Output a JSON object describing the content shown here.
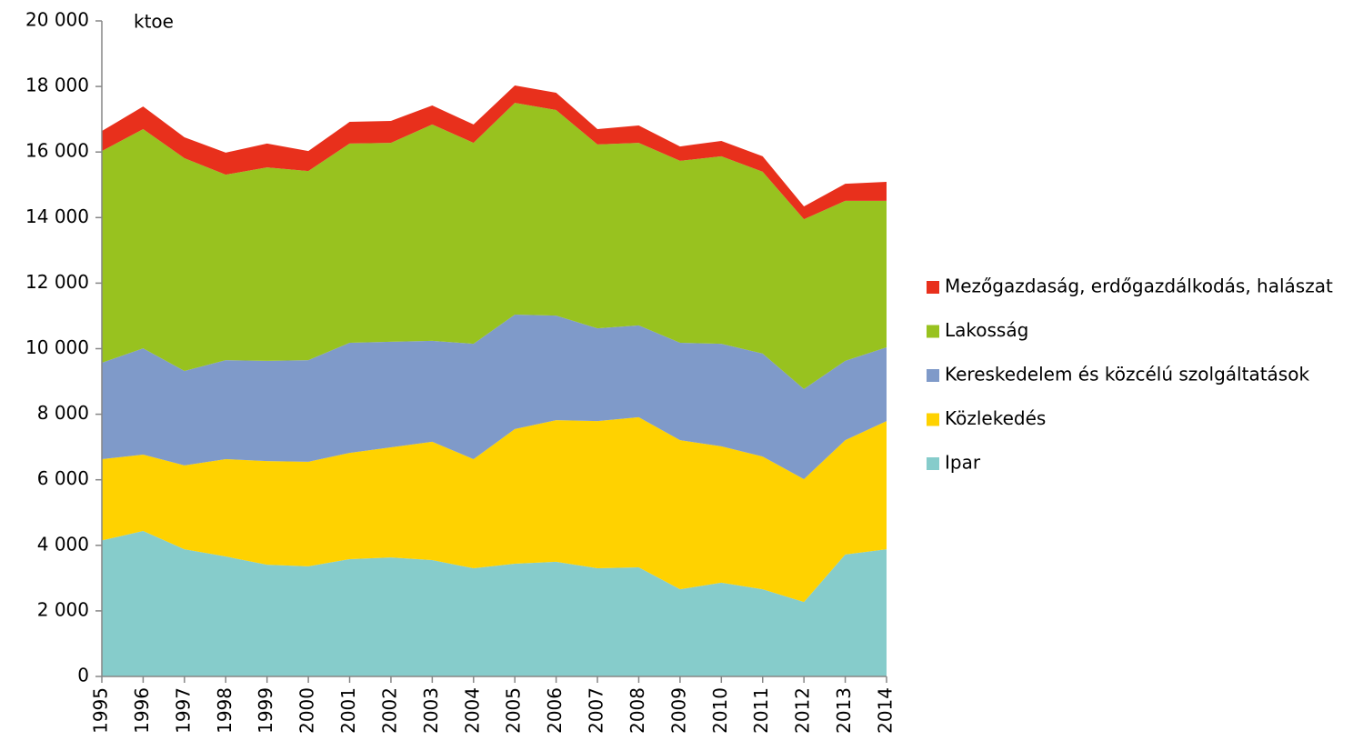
{
  "chart_data": {
    "type": "stacked-area",
    "y_label": "ktoe",
    "categories": [
      "1995",
      "1996",
      "1997",
      "1998",
      "1999",
      "2000",
      "2001",
      "2002",
      "2003",
      "2004",
      "2005",
      "2006",
      "2007",
      "2008",
      "2009",
      "2010",
      "2011",
      "2012",
      "2013",
      "2014"
    ],
    "series": [
      {
        "name": "Ipar",
        "color": "#86cccb",
        "values": [
          4150,
          4440,
          3880,
          3660,
          3410,
          3360,
          3580,
          3630,
          3550,
          3300,
          3440,
          3500,
          3300,
          3330,
          2660,
          2860,
          2660,
          2270,
          3720,
          3880
        ]
      },
      {
        "name": "Közlekedés",
        "color": "#ffd200",
        "values": [
          2480,
          2330,
          2560,
          2970,
          3160,
          3190,
          3240,
          3360,
          3610,
          3330,
          4110,
          4320,
          4490,
          4580,
          4550,
          4160,
          4050,
          3750,
          3490,
          3910
        ]
      },
      {
        "name": "Kereskedelem és közcélú szolgáltatások",
        "color": "#7f9ac9",
        "values": [
          2940,
          3240,
          2880,
          3020,
          3060,
          3100,
          3360,
          3220,
          3080,
          3520,
          3490,
          3190,
          2830,
          2800,
          2970,
          3130,
          3140,
          2750,
          2420,
          2250
        ]
      },
      {
        "name": "Lakosság",
        "color": "#98c21f",
        "values": [
          6460,
          6690,
          6490,
          5660,
          5900,
          5770,
          6080,
          6070,
          6600,
          6130,
          6460,
          6270,
          5610,
          5570,
          5550,
          5720,
          5550,
          5180,
          4880,
          4470
        ]
      },
      {
        "name": "Mezőgazdaság, erdőgazdálkodás, halászat",
        "color": "#e8301c",
        "values": [
          610,
          690,
          640,
          670,
          730,
          610,
          660,
          670,
          580,
          560,
          530,
          530,
          470,
          530,
          440,
          470,
          470,
          390,
          520,
          580
        ]
      }
    ],
    "ylim": [
      0,
      20000
    ],
    "yticks": [
      0,
      {
        "value": 2000,
        "label": "2 000"
      },
      {
        "value": 4000,
        "label": "4 000"
      },
      {
        "value": 6000,
        "label": "6 000"
      },
      {
        "value": 8000,
        "label": "8 000"
      },
      {
        "value": 10000,
        "label": "10 000"
      },
      {
        "value": 12000,
        "label": "12 000"
      },
      {
        "value": 14000,
        "label": "14 000"
      },
      {
        "value": 16000,
        "label": "16 000"
      },
      {
        "value": 18000,
        "label": "18 000"
      },
      {
        "value": 20000,
        "label": "20 000"
      }
    ],
    "legend": "right"
  }
}
